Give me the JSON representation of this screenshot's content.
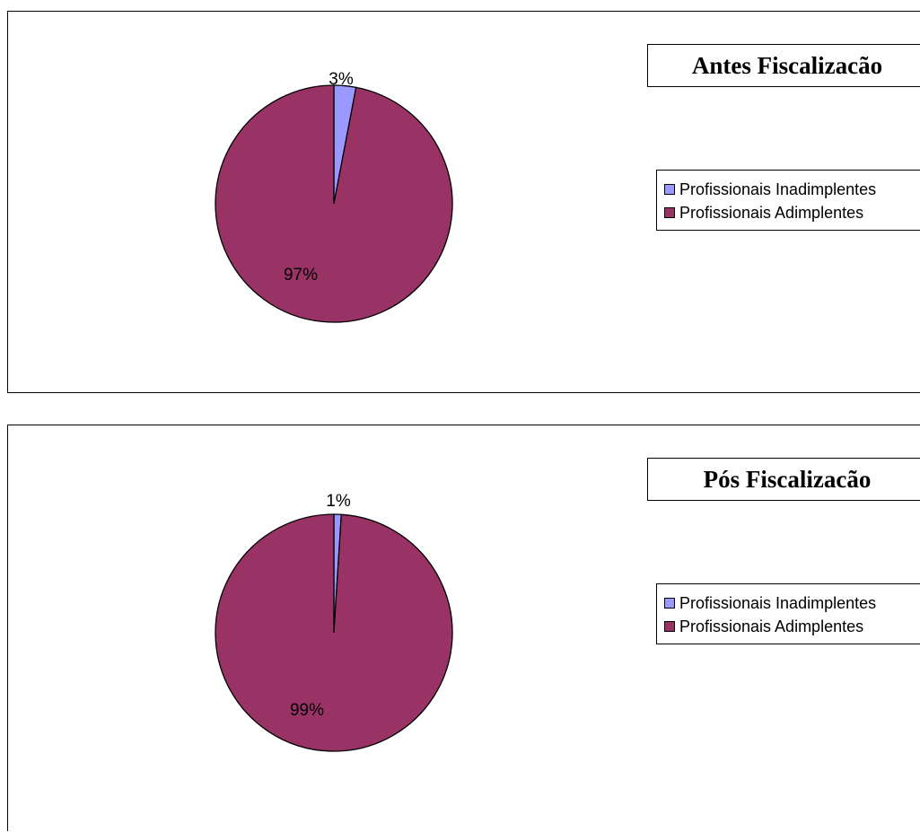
{
  "chart_data": [
    {
      "type": "pie",
      "title": "Antes Fiscalizacão",
      "categories": [
        "Profissionais Inadimplentes",
        "Profissionais Adimplentes"
      ],
      "values": [
        3,
        97
      ],
      "labels": [
        "3%",
        "97%"
      ],
      "colors": [
        "#9999ff",
        "#993366"
      ],
      "legend_position": "right"
    },
    {
      "type": "pie",
      "title": "Pós Fiscalizacão",
      "categories": [
        "Profissionais Inadimplentes",
        "Profissionais Adimplentes"
      ],
      "values": [
        1,
        99
      ],
      "labels": [
        "1%",
        "99%"
      ],
      "colors": [
        "#9999ff",
        "#993366"
      ],
      "legend_position": "right"
    }
  ]
}
